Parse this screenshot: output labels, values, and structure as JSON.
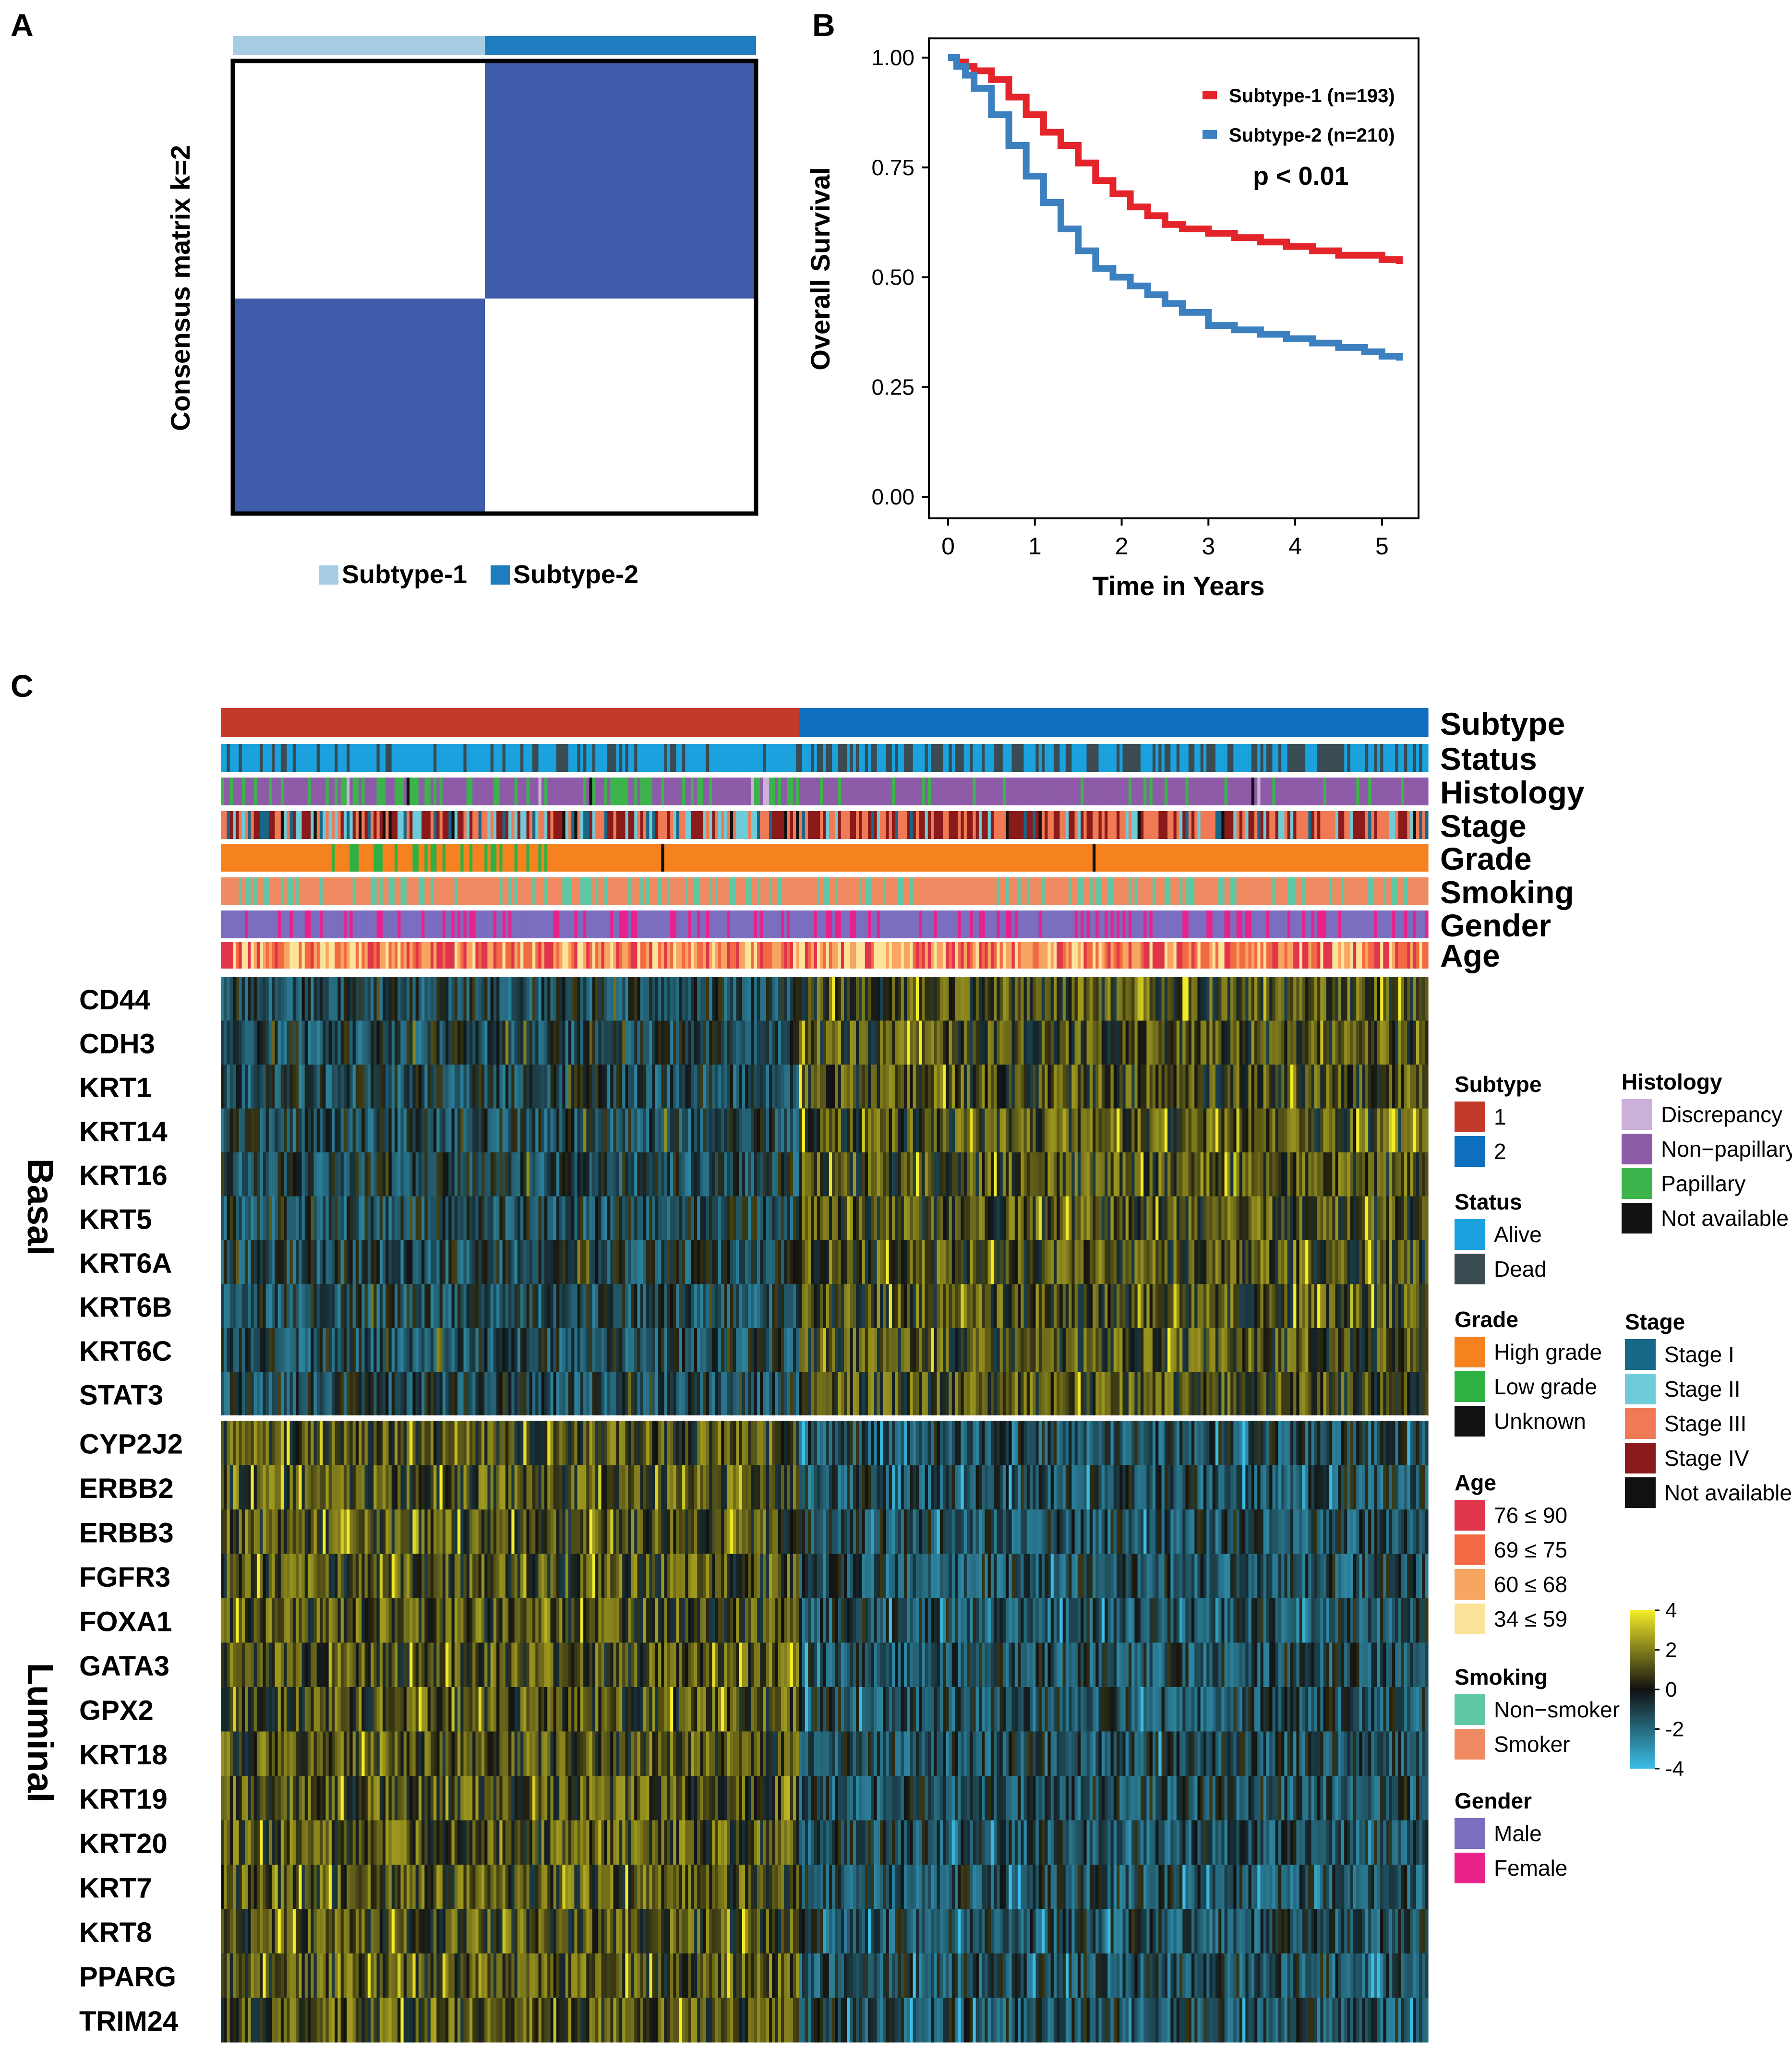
{
  "panels": {
    "a_label": "A",
    "b_label": "B",
    "c_label": "C"
  },
  "colors": {
    "subtype1_light": "#a6cde3",
    "subtype2_dark": "#1f7dbf",
    "consensus_fill": "#3f5caa",
    "km_subtype1": "#e3242b",
    "km_subtype2": "#3c80c0",
    "hm_subtype1": "#c23b2a",
    "hm_subtype2": "#0e6fbf",
    "heat_low": "#3bbfe8",
    "heat_mid": "#111111",
    "heat_high": "#f4ec28"
  },
  "chart_data": [
    {
      "type": "heatmap",
      "panel": "A",
      "title": "",
      "ylabel": "Consensus matrix k=2",
      "k": 2,
      "clusters": [
        "Subtype-1",
        "Subtype-2"
      ],
      "consensus_matrix": [
        [
          0,
          1
        ],
        [
          1,
          0
        ]
      ],
      "legend": [
        "Subtype-1",
        "Subtype-2"
      ]
    },
    {
      "type": "line",
      "panel": "B",
      "xlabel": "Time in Years",
      "ylabel": "Overall Survival",
      "xlim": [
        0,
        5.2
      ],
      "ylim": [
        0,
        1
      ],
      "xticks": [
        "0",
        "1",
        "2",
        "3",
        "4",
        "5"
      ],
      "yticks": [
        "0.00",
        "0.25",
        "0.50",
        "0.75",
        "1.00"
      ],
      "annotation": "p < 0.01",
      "series": [
        {
          "name": "Subtype-1 (n=193)",
          "x": [
            0,
            0.1,
            0.2,
            0.3,
            0.5,
            0.7,
            0.9,
            1.1,
            1.3,
            1.5,
            1.7,
            1.9,
            2.1,
            2.3,
            2.5,
            2.7,
            3.0,
            3.3,
            3.6,
            3.9,
            4.2,
            4.5,
            4.8,
            5.0,
            5.2
          ],
          "y": [
            1.0,
            0.99,
            0.98,
            0.97,
            0.95,
            0.91,
            0.87,
            0.83,
            0.8,
            0.76,
            0.72,
            0.69,
            0.66,
            0.64,
            0.62,
            0.61,
            0.6,
            0.59,
            0.58,
            0.57,
            0.56,
            0.55,
            0.55,
            0.54,
            0.53
          ]
        },
        {
          "name": "Subtype-2 (n=210)",
          "x": [
            0,
            0.1,
            0.2,
            0.3,
            0.5,
            0.7,
            0.9,
            1.1,
            1.3,
            1.5,
            1.7,
            1.9,
            2.1,
            2.3,
            2.5,
            2.7,
            3.0,
            3.3,
            3.6,
            3.9,
            4.2,
            4.5,
            4.8,
            5.0,
            5.2
          ],
          "y": [
            1.0,
            0.98,
            0.96,
            0.93,
            0.87,
            0.8,
            0.73,
            0.67,
            0.61,
            0.56,
            0.52,
            0.5,
            0.48,
            0.46,
            0.44,
            0.42,
            0.39,
            0.38,
            0.37,
            0.36,
            0.35,
            0.34,
            0.33,
            0.32,
            0.31
          ]
        }
      ]
    },
    {
      "type": "heatmap",
      "panel": "C",
      "annotation_tracks": [
        "Subtype",
        "Status",
        "Histology",
        "Stage",
        "Grade",
        "Smoking",
        "Gender",
        "Age"
      ],
      "row_groups": [
        {
          "name": "Basal",
          "genes": [
            "CD44",
            "CDH3",
            "KRT1",
            "KRT14",
            "KRT16",
            "KRT5",
            "KRT6A",
            "KRT6B",
            "KRT6C",
            "STAT3"
          ]
        },
        {
          "name": "Luminal",
          "genes": [
            "CYP2J2",
            "ERBB2",
            "ERBB3",
            "FGFR3",
            "FOXA1",
            "GATA3",
            "GPX2",
            "KRT18",
            "KRT19",
            "KRT20",
            "KRT7",
            "KRT8",
            "PPARG",
            "TRIM24"
          ]
        }
      ],
      "n_samples": {
        "subtype1": 193,
        "subtype2": 210
      },
      "color_scale": {
        "ticks": [
          "4",
          "2",
          "0",
          "-2",
          "-4"
        ],
        "min": -4,
        "max": 4
      },
      "legends": [
        {
          "title": "Subtype",
          "items": [
            {
              "label": "1",
              "color": "#c23b2a"
            },
            {
              "label": "2",
              "color": "#0e6fbf"
            }
          ]
        },
        {
          "title": "Status",
          "items": [
            {
              "label": "Alive",
              "color": "#1ba1dd"
            },
            {
              "label": "Dead",
              "color": "#3a4b52"
            }
          ]
        },
        {
          "title": "Grade",
          "items": [
            {
              "label": "High grade",
              "color": "#f5821f"
            },
            {
              "label": "Low grade",
              "color": "#2fb043"
            },
            {
              "label": "Unknown",
              "color": "#111111"
            }
          ]
        },
        {
          "title": "Age",
          "items": [
            {
              "label": "76 ≤ 90",
              "color": "#e0354a"
            },
            {
              "label": "69 ≤ 75",
              "color": "#f26a43"
            },
            {
              "label": "60 ≤ 68",
              "color": "#f7a561"
            },
            {
              "label": "34 ≤ 59",
              "color": "#fde39a"
            }
          ]
        },
        {
          "title": "Smoking",
          "items": [
            {
              "label": "Non−smoker",
              "color": "#5fc8a5"
            },
            {
              "label": "Smoker",
              "color": "#f08a63"
            }
          ]
        },
        {
          "title": "Gender",
          "items": [
            {
              "label": "Male",
              "color": "#7b6dbf"
            },
            {
              "label": "Female",
              "color": "#e8228a"
            }
          ]
        },
        {
          "title": "Histology",
          "items": [
            {
              "label": "Discrepancy",
              "color": "#cbb0d9"
            },
            {
              "label": "Non−papillary",
              "color": "#8e5ba8"
            },
            {
              "label": "Papillary",
              "color": "#3cb44b"
            },
            {
              "label": "Not available",
              "color": "#111111"
            }
          ]
        },
        {
          "title": "Stage",
          "items": [
            {
              "label": "Stage I",
              "color": "#176788"
            },
            {
              "label": "Stage II",
              "color": "#6ecbd8"
            },
            {
              "label": "Stage III",
              "color": "#f07a55"
            },
            {
              "label": "Stage IV",
              "color": "#8b1a1a"
            },
            {
              "label": "Not available",
              "color": "#111111"
            }
          ]
        }
      ]
    }
  ]
}
